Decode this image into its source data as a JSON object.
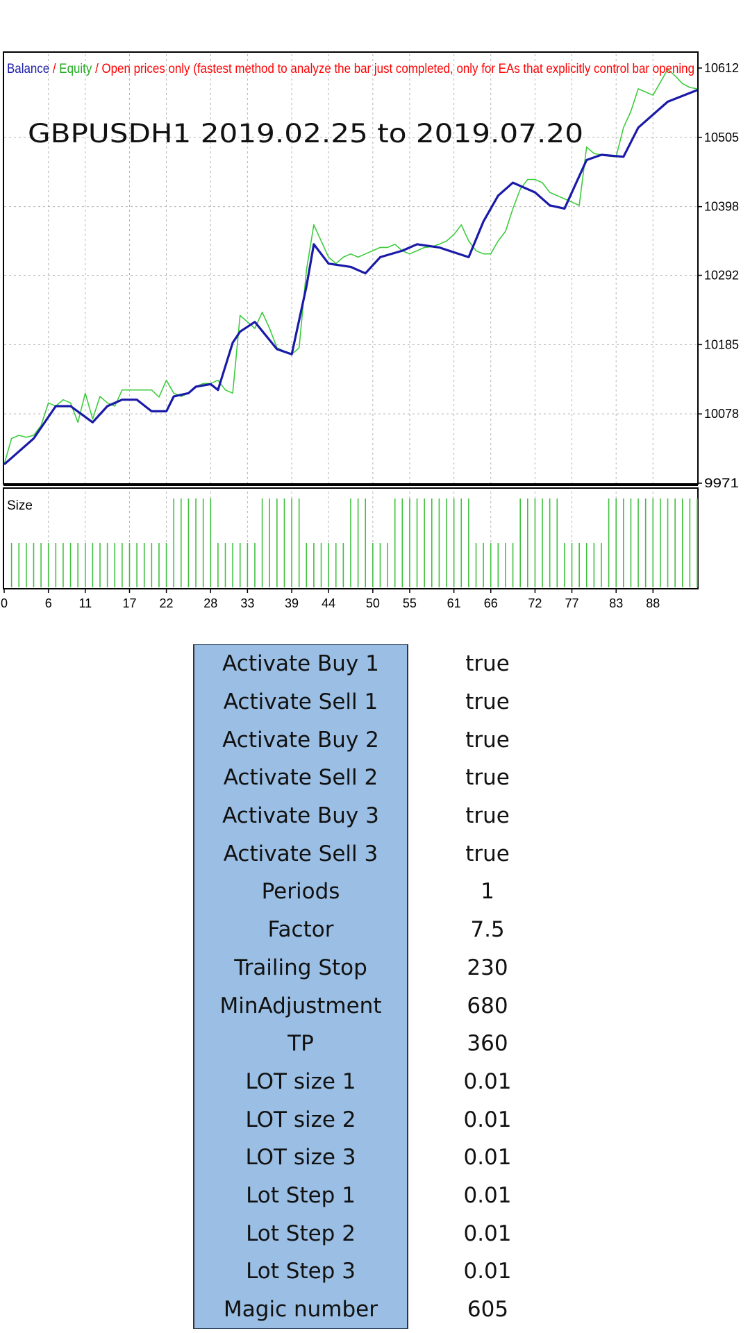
{
  "legend": {
    "balance": "Balance",
    "sep1": " / ",
    "equity": "Equity",
    "sep2": " / ",
    "mode": "Open prices only (fastest method to analyze the bar just completed, only for EAs that explicitly control bar opening"
  },
  "chart_title": "GBPUSDH1 2019.02.25  to  2019.07.20",
  "size_label": "Size",
  "colors": {
    "balance": "#1a1aa8",
    "equity": "#3ccc3c",
    "mode_text": "#ff0000",
    "size_bars": "#40c040",
    "grid": "#b4b4b4",
    "table_label_bg": "#9bbfe4"
  },
  "chart_data": [
    {
      "type": "line",
      "title": "GBPUSDH1 2019.02.25  to  2019.07.20",
      "ylim": [
        9971,
        10612
      ],
      "y_ticks": [
        9971,
        10078,
        10185,
        10292,
        10398,
        10505,
        10612
      ],
      "x_ticks": [
        0,
        6,
        11,
        17,
        22,
        28,
        33,
        39,
        44,
        50,
        55,
        61,
        66,
        72,
        77,
        83,
        88
      ],
      "grid": true,
      "series": [
        {
          "name": "Balance",
          "x": [
            0,
            4,
            7,
            9,
            12,
            14,
            16,
            18,
            20,
            22,
            23,
            25,
            26,
            28,
            29,
            31,
            32,
            34,
            37,
            39,
            41,
            42,
            44,
            47,
            49,
            51,
            54,
            56,
            59,
            63,
            65,
            67,
            69,
            72,
            74,
            76,
            79,
            81,
            84,
            86,
            90,
            94
          ],
          "y": [
            10000,
            10040,
            10090,
            10090,
            10065,
            10090,
            10100,
            10100,
            10082,
            10082,
            10105,
            10110,
            10120,
            10124,
            10115,
            10188,
            10205,
            10220,
            10178,
            10170,
            10275,
            10340,
            10310,
            10305,
            10295,
            10320,
            10330,
            10340,
            10335,
            10320,
            10375,
            10415,
            10435,
            10420,
            10400,
            10395,
            10470,
            10478,
            10475,
            10520,
            10560,
            10578
          ]
        },
        {
          "name": "Equity",
          "x": [
            0,
            1,
            2,
            3,
            4,
            5,
            6,
            7,
            8,
            9,
            10,
            11,
            12,
            13,
            14,
            15,
            16,
            17,
            18,
            19,
            20,
            21,
            22,
            23,
            24,
            25,
            26,
            27,
            28,
            29,
            30,
            31,
            32,
            33,
            34,
            35,
            36,
            37,
            38,
            39,
            40,
            41,
            42,
            43,
            44,
            45,
            46,
            47,
            48,
            49,
            50,
            51,
            52,
            53,
            54,
            55,
            56,
            57,
            58,
            59,
            60,
            61,
            62,
            63,
            64,
            65,
            66,
            67,
            68,
            69,
            70,
            71,
            72,
            73,
            74,
            75,
            76,
            77,
            78,
            79,
            80,
            81,
            82,
            83,
            84,
            85,
            86,
            87,
            88,
            89,
            90,
            91,
            92,
            93,
            94
          ],
          "y": [
            10000,
            10040,
            10045,
            10042,
            10045,
            10060,
            10095,
            10090,
            10100,
            10095,
            10065,
            10110,
            10070,
            10105,
            10095,
            10090,
            10115,
            10115,
            10115,
            10115,
            10115,
            10104,
            10130,
            10110,
            10105,
            10110,
            10120,
            10125,
            10125,
            10130,
            10115,
            10110,
            10230,
            10220,
            10210,
            10235,
            10210,
            10180,
            10175,
            10170,
            10180,
            10300,
            10370,
            10345,
            10320,
            10310,
            10320,
            10325,
            10320,
            10325,
            10330,
            10335,
            10335,
            10340,
            10330,
            10325,
            10330,
            10335,
            10336,
            10340,
            10345,
            10355,
            10370,
            10345,
            10330,
            10325,
            10325,
            10345,
            10360,
            10395,
            10425,
            10440,
            10440,
            10435,
            10420,
            10415,
            10410,
            10405,
            10400,
            10490,
            10480,
            10478,
            10476,
            10475,
            10520,
            10545,
            10580,
            10575,
            10570,
            10590,
            10610,
            10600,
            10588,
            10582,
            10580
          ]
        }
      ]
    },
    {
      "type": "bar",
      "title": "Size",
      "x": [
        0,
        1,
        2,
        3,
        4,
        5,
        6,
        7,
        8,
        9,
        10,
        11,
        12,
        13,
        14,
        15,
        16,
        17,
        18,
        19,
        20,
        21,
        22,
        23,
        24,
        25,
        26,
        27,
        28,
        29,
        30,
        31,
        32,
        33,
        34,
        35,
        36,
        37,
        38,
        39,
        40,
        41,
        42,
        43,
        44,
        45,
        46,
        47,
        48,
        49,
        50,
        51,
        52,
        53,
        54,
        55,
        56,
        57,
        58,
        59,
        60,
        61,
        62,
        63,
        64,
        65,
        66,
        67,
        68,
        69,
        70,
        71,
        72,
        73,
        74,
        75,
        76,
        77,
        78,
        79,
        80,
        81,
        82,
        83,
        84,
        85,
        86,
        87,
        88,
        89,
        90,
        91,
        92,
        93,
        94
      ],
      "values": [
        0,
        1,
        1,
        1,
        1,
        1,
        1,
        1,
        1,
        1,
        1,
        1,
        1,
        1,
        1,
        1,
        1,
        1,
        1,
        1,
        1,
        1,
        1,
        2,
        2,
        2,
        2,
        2,
        2,
        1,
        1,
        1,
        1,
        1,
        1,
        2,
        2,
        2,
        2,
        2,
        2,
        1,
        1,
        1,
        1,
        1,
        1,
        2,
        2,
        2,
        1,
        1,
        1,
        2,
        2,
        2,
        2,
        2,
        2,
        2,
        2,
        2,
        2,
        2,
        1,
        1,
        1,
        1,
        1,
        1,
        2,
        2,
        2,
        2,
        2,
        2,
        1,
        1,
        1,
        1,
        1,
        1,
        2,
        2,
        2,
        2,
        2,
        2,
        2,
        2,
        2,
        2,
        2,
        2,
        2
      ]
    }
  ],
  "params": [
    {
      "label": "Activate Buy 1",
      "value": "true"
    },
    {
      "label": "Activate Sell 1",
      "value": "true"
    },
    {
      "label": "Activate Buy 2",
      "value": "true"
    },
    {
      "label": "Activate Sell 2",
      "value": "true"
    },
    {
      "label": "Activate Buy 3",
      "value": "true"
    },
    {
      "label": "Activate Sell 3",
      "value": "true"
    },
    {
      "label": "Periods",
      "value": "1"
    },
    {
      "label": "Factor",
      "value": "7.5"
    },
    {
      "label": "Trailing Stop",
      "value": "230"
    },
    {
      "label": "MinAdjustment",
      "value": "680"
    },
    {
      "label": "TP",
      "value": "360"
    },
    {
      "label": "LOT size 1",
      "value": "0.01"
    },
    {
      "label": "LOT size 2",
      "value": "0.01"
    },
    {
      "label": "LOT size 3",
      "value": "0.01"
    },
    {
      "label": "Lot Step 1",
      "value": "0.01"
    },
    {
      "label": "Lot Step 2",
      "value": "0.01"
    },
    {
      "label": "Lot Step 3",
      "value": "0.01"
    },
    {
      "label": "Magic number",
      "value": "605"
    }
  ]
}
